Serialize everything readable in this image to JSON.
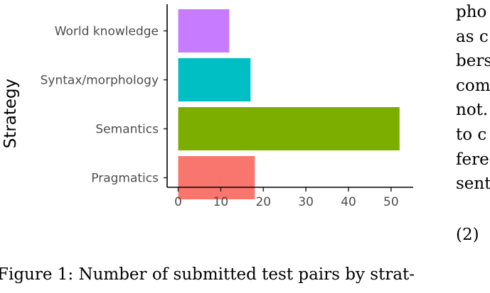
{
  "chart_data": {
    "type": "bar",
    "orientation": "horizontal",
    "ylabel": "Strategy",
    "xlabel": "",
    "categories": [
      "World knowledge",
      "Syntax/morphology",
      "Semantics",
      "Pragmatics"
    ],
    "values": [
      12,
      17,
      52,
      18
    ],
    "colors": [
      "#C77CFF",
      "#00BFC4",
      "#7CAE00",
      "#F8766D"
    ],
    "x_ticks": [
      0,
      10,
      20,
      30,
      40,
      50
    ],
    "xlim": [
      -2.6,
      55.2
    ],
    "grid": false
  },
  "caption": "Figure 1: Number of submitted test pairs by strat-",
  "side_text": [
    "pho",
    "as c",
    "bers",
    "com",
    "not.",
    "to c",
    "fere",
    "sent"
  ],
  "equation_number": "(2)"
}
